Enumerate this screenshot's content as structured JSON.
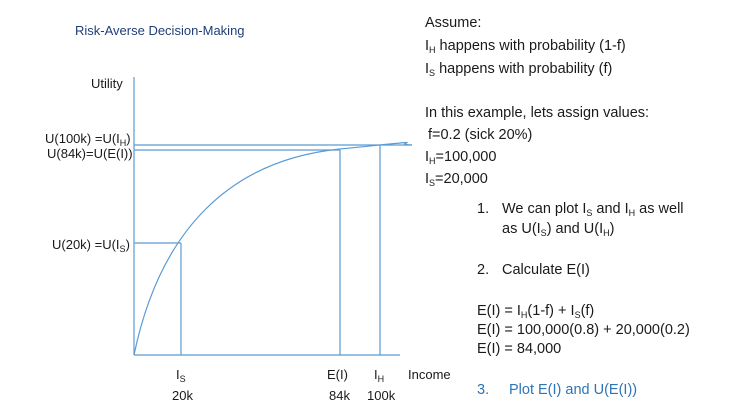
{
  "slide": {
    "title": "Risk-Averse Decision-Making"
  },
  "diagram": {
    "y_axis_label": "Utility",
    "x_axis_label": "Income",
    "y_label_uih_prefix": "U(100k) =U(I",
    "y_label_uih_sub": "H",
    "y_label_uih_suffix": ")",
    "y_label_uei": "U(84k)=U(E(I))",
    "y_label_uis_prefix": "U(20k) =U(I",
    "y_label_uis_sub": "S",
    "y_label_uis_suffix": ")",
    "x_is_letter": "I",
    "x_is_sub": "S",
    "x_is_value": "20k",
    "x_ei_label": "E(I)",
    "x_ei_value": "84k",
    "x_ih_letter": "I",
    "x_ih_sub": "H",
    "x_ih_value": "100k",
    "curve_color": "#5b9bd5"
  },
  "notes": {
    "assume": "Assume:",
    "ih_letter": "I",
    "ih_sub": "H",
    "ih_text": " happens with probability (1-f)",
    "is_letter": "I",
    "is_sub": "S",
    "is_text": " happens with probability (f)",
    "example_intro": "In this example, lets assign values:",
    "f_value": "f=0.2 (sick 20%)",
    "ih_value_letter": "I",
    "ih_value_sub": "H",
    "ih_value_text": "=100,000",
    "is_value_letter": "I",
    "is_value_sub": "S",
    "is_value_text": "=20,000",
    "step1_number": "1.",
    "step1_a": "We can plot I",
    "step1_a_sub": "S",
    "step1_b": " and I",
    "step1_b_sub": "H",
    "step1_c": " as well",
    "step1_d": "as U(I",
    "step1_d_sub": "S",
    "step1_e": ") and U(I",
    "step1_e_sub": "H",
    "step1_f": ")",
    "step2_number": "2.",
    "step2_text": "Calculate E(I)",
    "eq1_a": "E(I) = I",
    "eq1_a_sub": "H",
    "eq1_b": "(1-f) + I",
    "eq1_b_sub": "S",
    "eq1_c": "(f)",
    "eq2": "E(I) = 100,000(0.8) + 20,000(0.2)",
    "eq3": "E(I) = 84,000",
    "step3_number": "3.",
    "step3_text": "Plot E(I) and U(E(I))",
    "step3_color": "#2e75b6"
  }
}
